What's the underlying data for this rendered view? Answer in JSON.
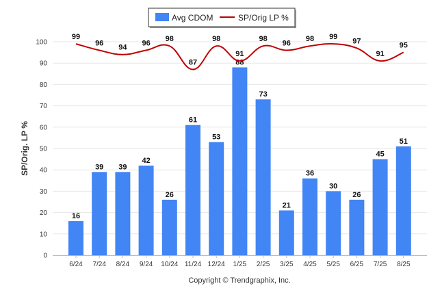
{
  "chart_data": {
    "type": "bar",
    "ylabel": "SP/Orig. LP %",
    "ylim": [
      0,
      100
    ],
    "yticks": [
      0,
      10,
      20,
      30,
      40,
      50,
      60,
      70,
      80,
      90,
      100
    ],
    "grid": true,
    "legend_position": "top-center",
    "categories": [
      "6/24",
      "7/24",
      "8/24",
      "9/24",
      "10/24",
      "11/24",
      "12/24",
      "1/25",
      "2/25",
      "3/25",
      "4/25",
      "5/25",
      "6/25",
      "7/25",
      "8/25"
    ],
    "series": [
      {
        "name": "Avg CDOM",
        "type": "bar",
        "color": "#4285f4",
        "values": [
          16,
          39,
          39,
          42,
          26,
          61,
          53,
          88,
          73,
          21,
          36,
          30,
          26,
          45,
          51
        ]
      },
      {
        "name": "SP/Orig LP %",
        "type": "line",
        "color": "#c00000",
        "values": [
          99,
          96,
          94,
          96,
          98,
          87,
          98,
          91,
          98,
          96,
          98,
          99,
          97,
          91,
          95
        ]
      }
    ]
  },
  "footer": {
    "copyright": "Copyright © Trendgraphix, Inc."
  }
}
